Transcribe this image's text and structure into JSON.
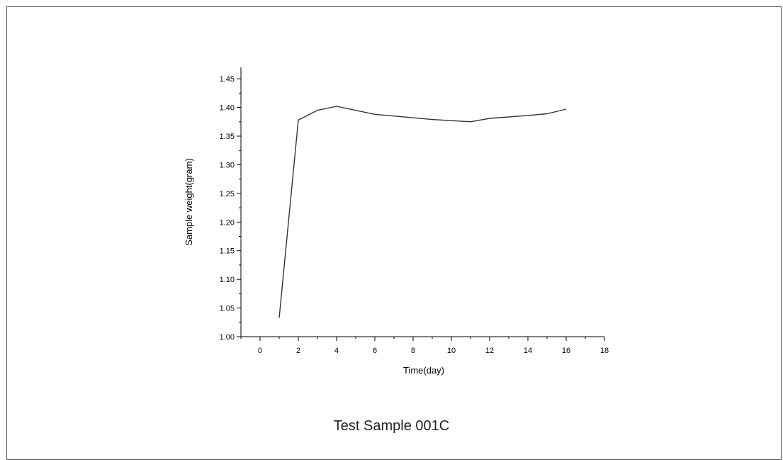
{
  "caption": "Test Sample 001C",
  "chart_data": {
    "type": "line",
    "title": "",
    "xlabel": "Time(day)",
    "ylabel": "Sample weight(gram)",
    "xlim": [
      -1,
      18
    ],
    "ylim": [
      1.0,
      1.47
    ],
    "x_ticks": [
      0,
      2,
      4,
      6,
      8,
      10,
      12,
      14,
      16,
      18
    ],
    "y_ticks": [
      1.0,
      1.05,
      1.1,
      1.15,
      1.2,
      1.25,
      1.3,
      1.35,
      1.4,
      1.45
    ],
    "y_tick_labels": [
      "1.00",
      "1.05",
      "1.10",
      "1.15",
      "1.20",
      "1.25",
      "1.30",
      "1.35",
      "1.40",
      "1.45"
    ],
    "grid": false,
    "series": [
      {
        "x": [
          1,
          2,
          3,
          4,
          6,
          9,
          11,
          12,
          14,
          15,
          16
        ],
        "values": [
          1.033,
          1.378,
          1.395,
          1.402,
          1.388,
          1.379,
          1.375,
          1.381,
          1.386,
          1.389,
          1.397
        ]
      }
    ]
  }
}
